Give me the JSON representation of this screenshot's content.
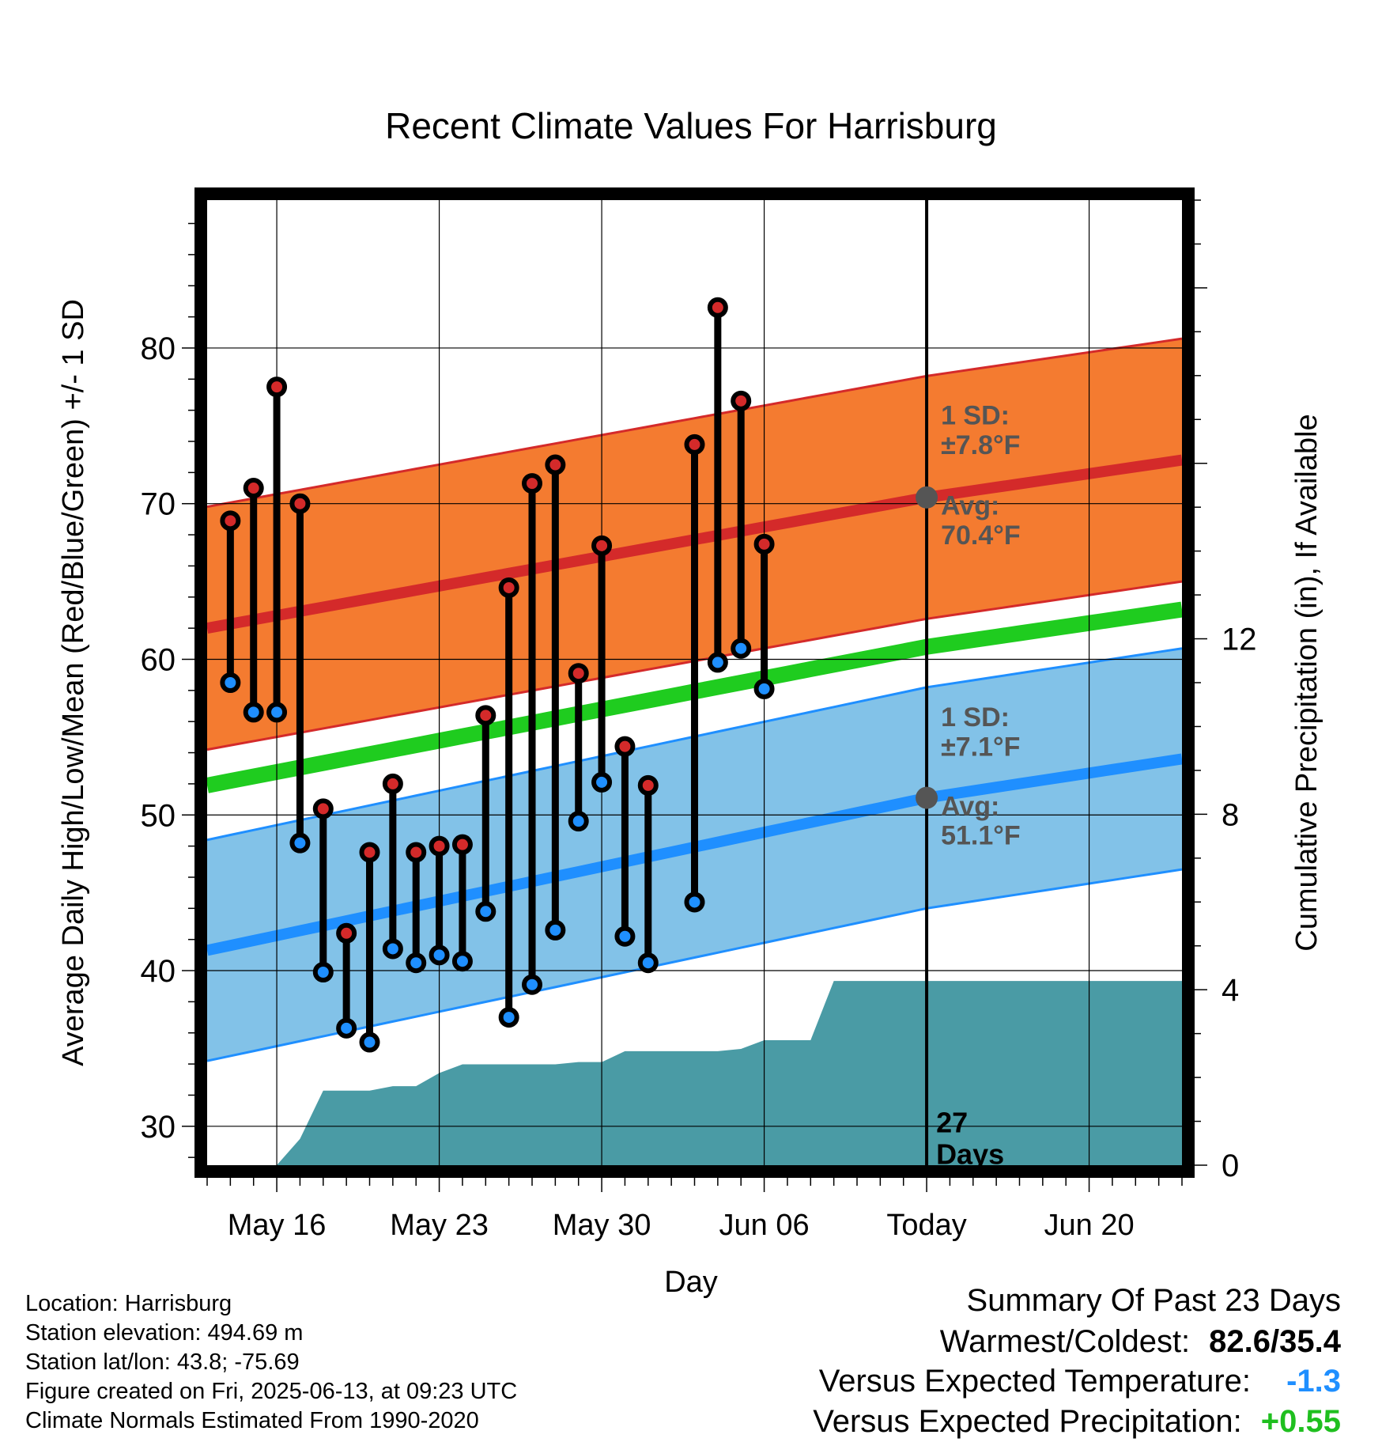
{
  "chart_data": {
    "type": "line",
    "title": "Recent Climate Values For Harrisburg",
    "xlabel": "Day",
    "ylabel": "Average Daily High/Low/Mean (Red/Blue/Green) +/- 1 SD",
    "y2label": "Cumulative Precipitation (in), If Available",
    "ylim": [
      27.5,
      89.5
    ],
    "y2lim": [
      0,
      22
    ],
    "yticks": [
      "30",
      "40",
      "50",
      "60",
      "70",
      "80"
    ],
    "y2ticks": [
      "0",
      "4",
      "8",
      "12"
    ],
    "xlim": [
      "2025-05-13",
      "2025-06-24"
    ],
    "xticks": [
      {
        "date": "2025-05-16",
        "label": "May 16"
      },
      {
        "date": "2025-05-23",
        "label": "May 23"
      },
      {
        "date": "2025-05-30",
        "label": "May 30"
      },
      {
        "date": "2025-06-06",
        "label": "Jun 06"
      },
      {
        "date": "2025-06-13",
        "label": "Today"
      },
      {
        "date": "2025-06-20",
        "label": "Jun 20"
      }
    ],
    "grid": true,
    "today": "2025-06-13",
    "today_label": "27\nDays",
    "normal_high": {
      "start": [
        "2025-05-13",
        62.0
      ],
      "today": [
        "2025-06-13",
        70.4
      ],
      "end": [
        "2025-06-24",
        72.8
      ],
      "sd": 7.8
    },
    "normal_low": {
      "start": [
        "2025-05-13",
        41.3
      ],
      "today": [
        "2025-06-13",
        51.1
      ],
      "end": [
        "2025-06-24",
        53.6
      ],
      "sd": 7.1
    },
    "normal_mean": {
      "start": [
        "2025-05-13",
        51.9
      ],
      "today": [
        "2025-06-13",
        60.8
      ],
      "end": [
        "2025-06-24",
        63.2
      ]
    },
    "annotations": {
      "high_sd": "1 SD:\n±7.8°F",
      "high_avg": "Avg:\n70.4°F",
      "low_sd": "1 SD:\n±7.1°F",
      "low_avg": "Avg:\n51.1°F"
    },
    "series": [
      {
        "name": "High",
        "color": "#d42a2a",
        "x": [
          "2025-05-14",
          "2025-05-15",
          "2025-05-16",
          "2025-05-17",
          "2025-05-18",
          "2025-05-19",
          "2025-05-20",
          "2025-05-21",
          "2025-05-22",
          "2025-05-23",
          "2025-05-24",
          "2025-05-25",
          "2025-05-26",
          "2025-05-27",
          "2025-05-28",
          "2025-05-29",
          "2025-05-30",
          "2025-05-31",
          "2025-06-01",
          "2025-06-03",
          "2025-06-04",
          "2025-06-05",
          "2025-06-06"
        ],
        "values": [
          68.9,
          71.0,
          77.5,
          70.0,
          50.4,
          42.4,
          47.6,
          52.0,
          47.6,
          48.0,
          48.1,
          56.4,
          64.6,
          71.3,
          72.5,
          59.1,
          67.3,
          54.4,
          51.9,
          73.8,
          82.6,
          76.6,
          67.4
        ]
      },
      {
        "name": "Low",
        "color": "#1f8fff",
        "x": [
          "2025-05-14",
          "2025-05-15",
          "2025-05-16",
          "2025-05-17",
          "2025-05-18",
          "2025-05-19",
          "2025-05-20",
          "2025-05-21",
          "2025-05-22",
          "2025-05-23",
          "2025-05-24",
          "2025-05-25",
          "2025-05-26",
          "2025-05-27",
          "2025-05-28",
          "2025-05-29",
          "2025-05-30",
          "2025-05-31",
          "2025-06-01",
          "2025-06-03",
          "2025-06-04",
          "2025-06-05",
          "2025-06-06"
        ],
        "values": [
          58.5,
          56.6,
          56.6,
          48.2,
          39.9,
          36.3,
          35.4,
          41.4,
          40.5,
          41.0,
          40.6,
          43.8,
          37.0,
          39.1,
          42.6,
          49.6,
          52.1,
          42.2,
          40.5,
          44.4,
          59.8,
          60.7,
          58.1
        ]
      },
      {
        "name": "Cumulative Precipitation",
        "color": "#4a9ba5",
        "x": [
          "2025-05-16",
          "2025-05-17",
          "2025-05-18",
          "2025-05-19",
          "2025-05-20",
          "2025-05-21",
          "2025-05-22",
          "2025-05-23",
          "2025-05-24",
          "2025-05-25",
          "2025-05-26",
          "2025-05-27",
          "2025-05-28",
          "2025-05-29",
          "2025-05-30",
          "2025-05-31",
          "2025-06-01",
          "2025-06-02",
          "2025-06-03",
          "2025-06-04",
          "2025-06-05",
          "2025-06-06",
          "2025-06-07",
          "2025-06-08",
          "2025-06-09",
          "2025-06-10",
          "2025-06-13",
          "2025-06-24"
        ],
        "values": [
          0.0,
          0.6,
          1.7,
          1.7,
          1.7,
          1.8,
          1.8,
          2.1,
          2.3,
          2.3,
          2.3,
          2.3,
          2.3,
          2.35,
          2.35,
          2.6,
          2.6,
          2.6,
          2.6,
          2.6,
          2.65,
          2.85,
          2.85,
          2.85,
          4.2,
          4.2,
          4.2,
          4.2
        ]
      }
    ]
  },
  "info": {
    "location": "Location: Harrisburg",
    "elevation": "Station elevation: 494.69 m",
    "latlon": "Station lat/lon: 43.8; -75.69",
    "created": "Figure created on Fri, 2025-06-13, at 09:23 UTC",
    "normals": "Climate Normals Estimated From 1990-2020"
  },
  "summary": {
    "title": "Summary Of Past 23 Days",
    "warm_cold_label": "Warmest/Coldest:",
    "warm_cold_value": "82.6/35.4",
    "temp_label": "Versus Expected Temperature:",
    "temp_value": "-1.3",
    "precip_label": "Versus Expected Precipitation:",
    "precip_value": "+0.55"
  },
  "colors": {
    "high_band": "#f47b30",
    "high_line": "#d42a2a",
    "low_band": "#82c2e8",
    "low_line": "#1f8fff",
    "mean_line": "#1fcc1f",
    "precip": "#4a9ba5",
    "annotation": "#555555"
  }
}
